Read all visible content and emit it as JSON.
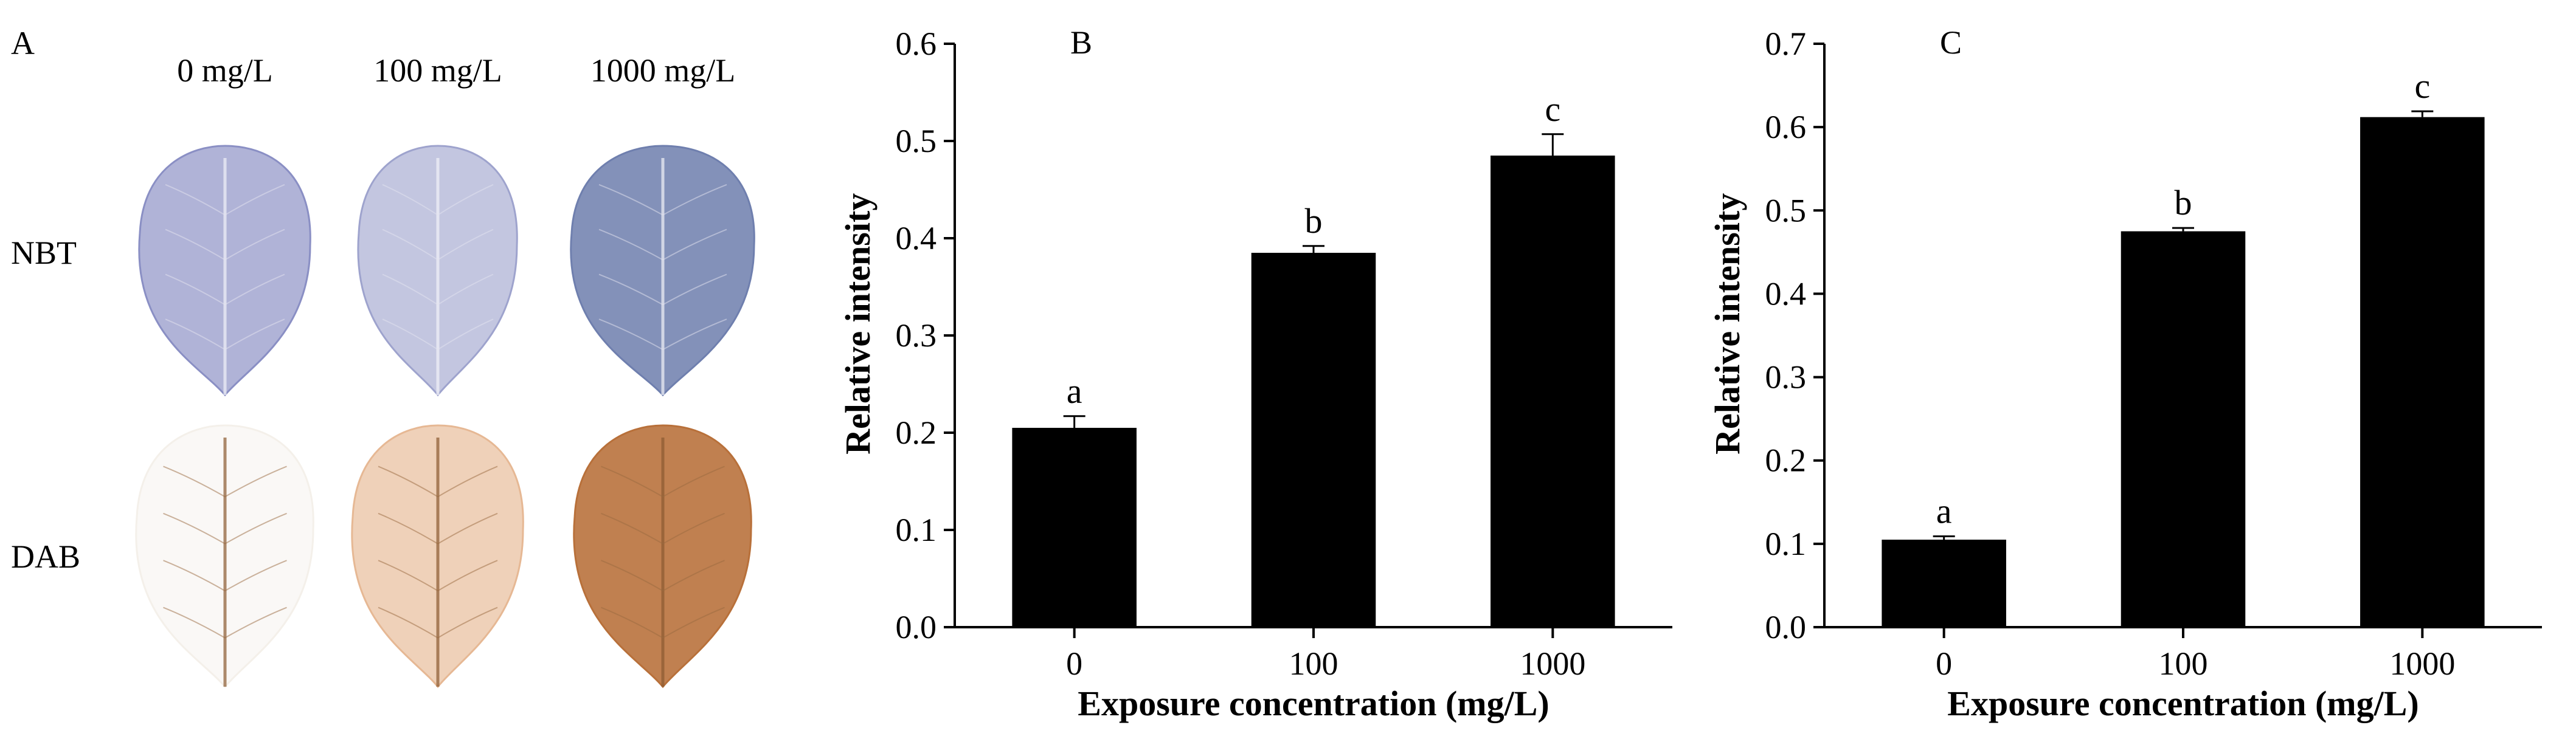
{
  "panel_a": {
    "letter": "A",
    "columns": [
      "0 mg/L",
      "100 mg/L",
      "1000 mg/L"
    ],
    "rows": [
      {
        "label": "NBT",
        "stain": "nbt",
        "colors": [
          "#8a8fc4",
          "#9ea3cd",
          "#6f7fae"
        ],
        "levels": [
          0.55,
          0.45,
          0.85
        ]
      },
      {
        "label": "DAB",
        "stain": "dab",
        "colors": [
          "#f4f0ea",
          "#e6b894",
          "#b8703a"
        ],
        "levels": [
          0.15,
          0.5,
          0.9
        ]
      }
    ]
  },
  "chart_data": [
    {
      "panel": "B",
      "type": "bar",
      "categories": [
        "0",
        "100",
        "1000"
      ],
      "values": [
        0.205,
        0.385,
        0.485
      ],
      "errors": [
        0.012,
        0.007,
        0.022
      ],
      "letters": [
        "a",
        "b",
        "c"
      ],
      "xlabel": "Exposure concentration (mg/L)",
      "ylabel": "Relative intensity",
      "ylim": [
        0,
        0.6
      ],
      "yticks": [
        "0.0",
        "0.1",
        "0.2",
        "0.3",
        "0.4",
        "0.5",
        "0.6"
      ],
      "bar_color": "#000000"
    },
    {
      "panel": "C",
      "type": "bar",
      "categories": [
        "0",
        "100",
        "1000"
      ],
      "values": [
        0.105,
        0.475,
        0.612
      ],
      "errors": [
        0.004,
        0.004,
        0.007
      ],
      "letters": [
        "a",
        "b",
        "c"
      ],
      "xlabel": "Exposure concentration (mg/L)",
      "ylabel": "Relative intensity",
      "ylim": [
        0,
        0.7
      ],
      "yticks": [
        "0.0",
        "0.1",
        "0.2",
        "0.3",
        "0.4",
        "0.5",
        "0.6",
        "0.7"
      ],
      "bar_color": "#000000"
    }
  ]
}
